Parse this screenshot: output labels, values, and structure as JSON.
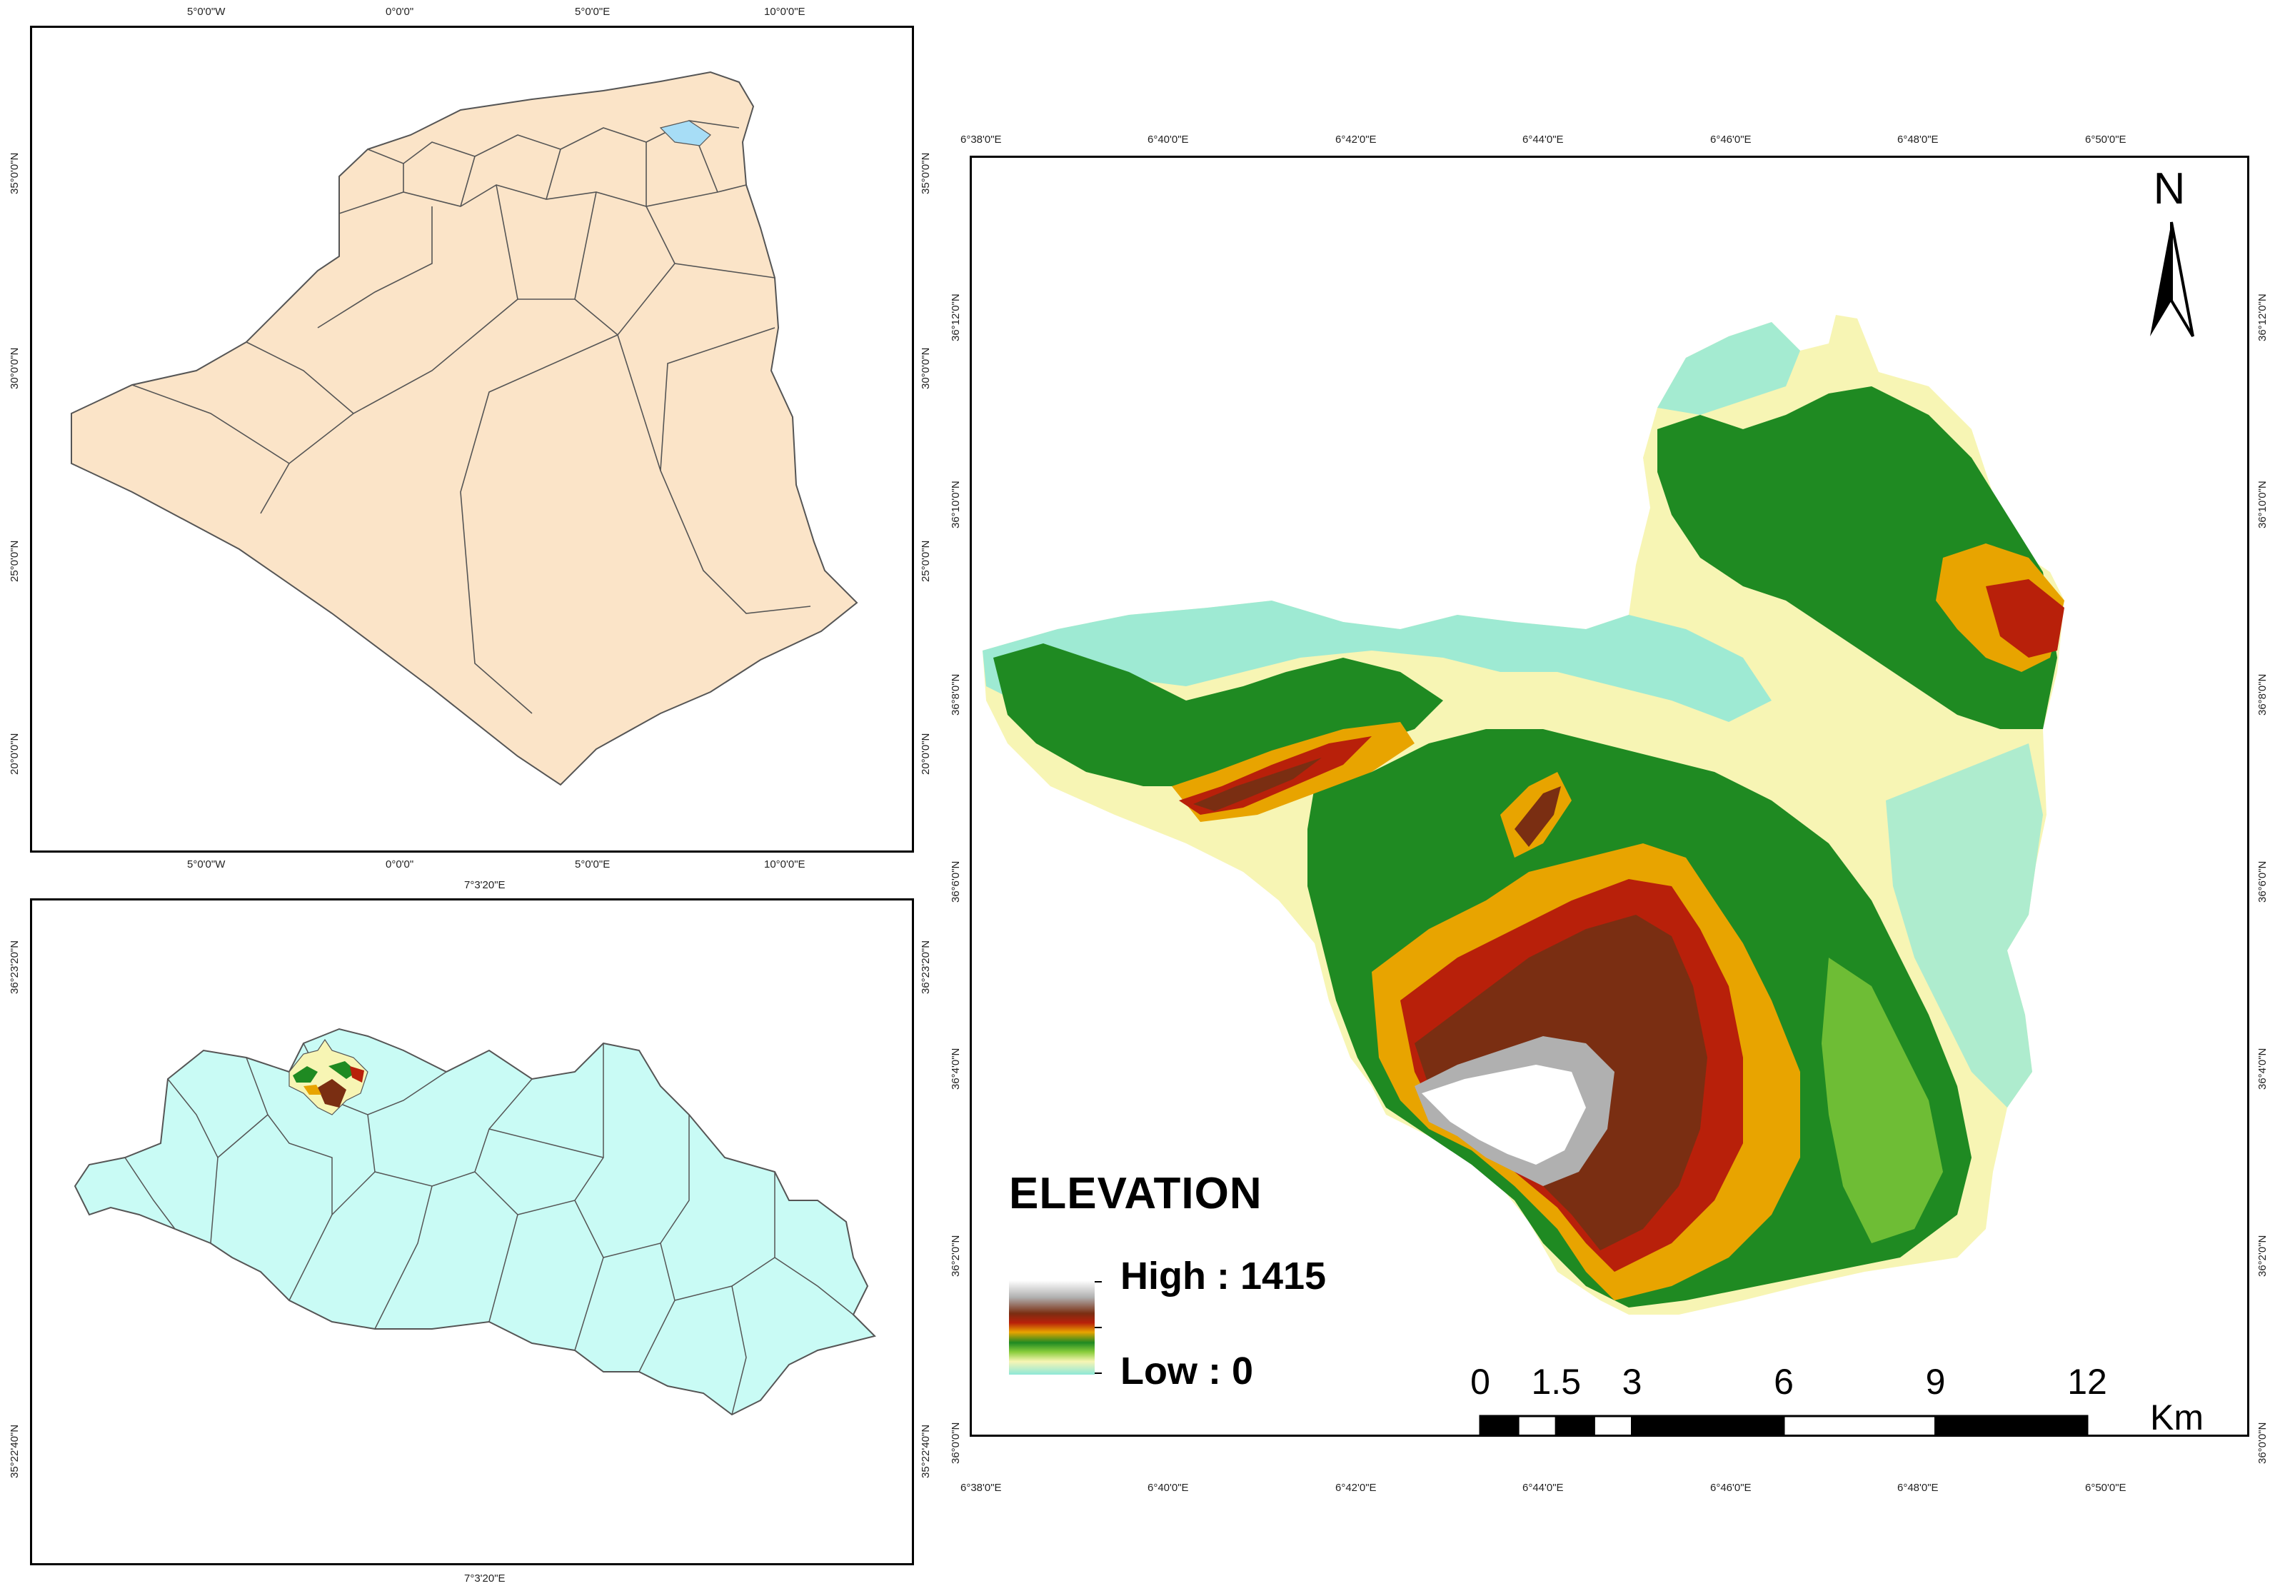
{
  "map1": {
    "top_ticks": [
      "5°0'0\"W",
      "0°0'0\"",
      "5°0'0\"E",
      "10°0'0\"E"
    ],
    "bottom_ticks": [
      "5°0'0\"W",
      "0°0'0\"",
      "5°0'0\"E",
      "10°0'0\"E"
    ],
    "left_ticks": [
      "35°0'0\"N",
      "30°0'0\"N",
      "25°0'0\"N",
      "20°0'0\"N"
    ],
    "right_ticks": [
      "35°0'0\"N",
      "30°0'0\"N",
      "25°0'0\"N",
      "20°0'0\"N"
    ],
    "fill_color": "#fbe4c8",
    "highlight_color": "#a7ddf6"
  },
  "map2": {
    "top_ticks": [
      "7°3'20\"E"
    ],
    "bottom_ticks": [
      "7°3'20\"E"
    ],
    "left_ticks": [
      "36°23'20\"N",
      "35°22'40\"N"
    ],
    "right_ticks": [
      "36°23'20\"N",
      "35°22'40\"N"
    ],
    "fill_color": "#c9fbf5"
  },
  "map3": {
    "top_ticks": [
      "6°38'0\"E",
      "6°40'0\"E",
      "6°42'0\"E",
      "6°44'0\"E",
      "6°46'0\"E",
      "6°48'0\"E",
      "6°50'0\"E"
    ],
    "bottom_ticks": [
      "6°38'0\"E",
      "6°40'0\"E",
      "6°42'0\"E",
      "6°44'0\"E",
      "6°46'0\"E",
      "6°48'0\"E",
      "6°50'0\"E"
    ],
    "left_ticks": [
      "36°12'0\"N",
      "36°10'0\"N",
      "36°8'0\"N",
      "36°6'0\"N",
      "36°4'0\"N",
      "36°2'0\"N",
      "36°0'0\"N"
    ],
    "right_ticks": [
      "36°12'0\"N",
      "36°10'0\"N",
      "36°8'0\"N",
      "36°6'0\"N",
      "36°4'0\"N",
      "36°2'0\"N",
      "36°0'0\"N"
    ],
    "north_label": "N",
    "legend": {
      "title": "ELEVATION",
      "high_label": "High : 1415",
      "low_label": "Low : 0"
    },
    "scale_bar": {
      "labels": [
        "0",
        "1.5",
        "3",
        "6",
        "9",
        "12"
      ],
      "values": [
        0,
        1.5,
        3,
        6,
        9,
        12
      ],
      "unit": "Km"
    },
    "elevation_colors": [
      "#ffffff",
      "#b0b0b0",
      "#7a2e12",
      "#b8200a",
      "#e8a400",
      "#1f8a22",
      "#8acd3c",
      "#f7f5b4",
      "#8ee8d8"
    ]
  }
}
